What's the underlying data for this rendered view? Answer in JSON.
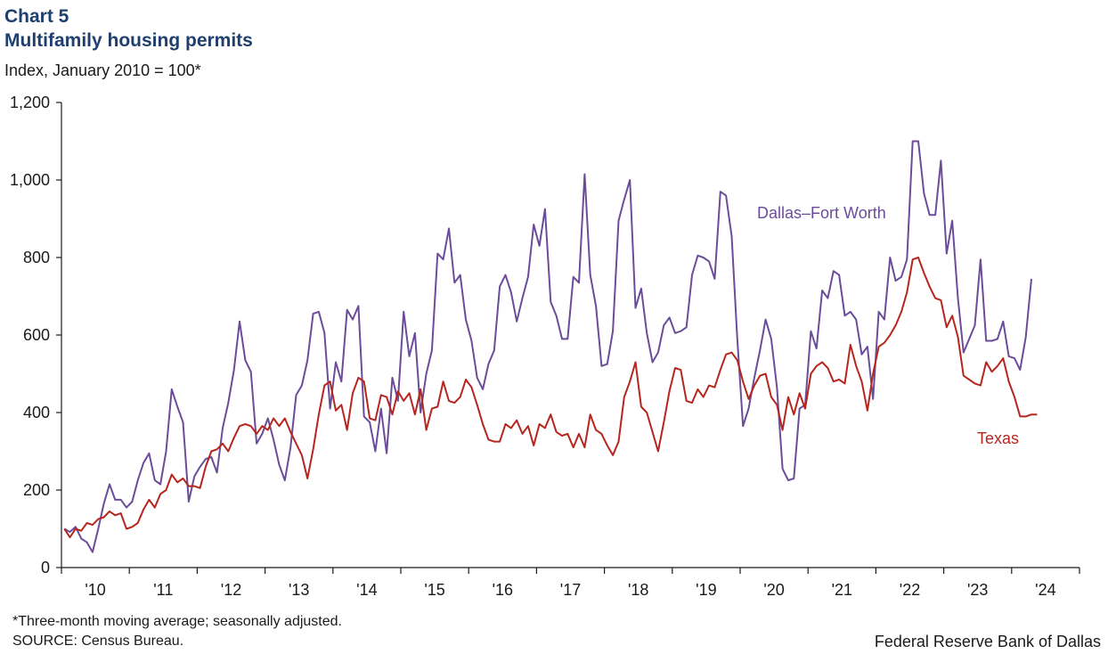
{
  "header": {
    "chart_number": "Chart 5",
    "title": "Multifamily housing permits",
    "subtitle": "Index, January 2010 = 100*"
  },
  "footer": {
    "note": "*Three-month moving average; seasonally adjusted.",
    "source": "SOURCE: Census Bureau.",
    "bank": "Federal Reserve Bank of Dallas"
  },
  "chart_data": {
    "type": "line",
    "title": "Multifamily housing permits",
    "ylabel": "Index, January 2010 = 100*",
    "xlabel": "",
    "ylim": [
      0,
      1200
    ],
    "yticks": [
      0,
      200,
      400,
      600,
      800,
      1000,
      1200
    ],
    "ytick_labels": [
      "0",
      "200",
      "400",
      "600",
      "800",
      "1,000",
      "1,200"
    ],
    "xtick_labels": [
      "'10",
      "'11",
      "'12",
      "'13",
      "'14",
      "'15",
      "'16",
      "'17",
      "'18",
      "'19",
      "'20",
      "'21",
      "'22",
      "'23",
      "'24"
    ],
    "x_start": "2010-01",
    "frequency": "monthly",
    "grid": false,
    "series": [
      {
        "name": "Dallas–Fort Worth",
        "color": "#6b4c9a",
        "values": [
          100,
          92,
          105,
          75,
          65,
          40,
          100,
          165,
          215,
          175,
          175,
          155,
          170,
          225,
          270,
          295,
          225,
          215,
          300,
          460,
          415,
          375,
          170,
          235,
          260,
          280,
          285,
          245,
          360,
          425,
          510,
          635,
          535,
          505,
          320,
          345,
          385,
          330,
          265,
          225,
          310,
          445,
          470,
          535,
          655,
          660,
          605,
          410,
          530,
          480,
          665,
          640,
          675,
          390,
          375,
          300,
          410,
          295,
          490,
          430,
          660,
          545,
          605,
          400,
          500,
          560,
          810,
          795,
          875,
          735,
          755,
          640,
          585,
          490,
          460,
          525,
          560,
          725,
          755,
          710,
          635,
          695,
          750,
          885,
          830,
          925,
          685,
          650,
          590,
          590,
          750,
          735,
          1015,
          755,
          675,
          520,
          525,
          610,
          895,
          950,
          1000,
          670,
          720,
          605,
          530,
          555,
          625,
          645,
          605,
          610,
          620,
          755,
          805,
          800,
          790,
          745,
          970,
          960,
          855,
          590,
          365,
          410,
          490,
          560,
          640,
          590,
          465,
          255,
          225,
          230,
          410,
          420,
          610,
          565,
          715,
          695,
          765,
          755,
          650,
          660,
          640,
          550,
          570,
          435,
          660,
          640,
          800,
          740,
          750,
          795,
          1100,
          1100,
          965,
          910,
          910,
          1050,
          810,
          895,
          695,
          555,
          590,
          625,
          795,
          585,
          585,
          590,
          635,
          545,
          540,
          510,
          595,
          745
        ]
      },
      {
        "name": "Texas",
        "color": "#b5261e",
        "values": [
          100,
          78,
          100,
          95,
          115,
          110,
          125,
          130,
          145,
          135,
          140,
          100,
          105,
          115,
          150,
          175,
          155,
          190,
          200,
          240,
          220,
          230,
          210,
          210,
          205,
          260,
          300,
          305,
          320,
          300,
          335,
          365,
          370,
          365,
          345,
          365,
          355,
          385,
          365,
          385,
          350,
          320,
          290,
          230,
          305,
          395,
          470,
          480,
          405,
          420,
          355,
          450,
          490,
          480,
          385,
          380,
          445,
          440,
          395,
          455,
          430,
          450,
          395,
          460,
          355,
          410,
          415,
          480,
          430,
          425,
          440,
          485,
          465,
          420,
          370,
          330,
          325,
          325,
          370,
          360,
          380,
          345,
          365,
          315,
          370,
          360,
          395,
          350,
          340,
          345,
          310,
          345,
          310,
          395,
          355,
          345,
          315,
          290,
          325,
          440,
          480,
          530,
          415,
          400,
          350,
          300,
          375,
          455,
          515,
          510,
          430,
          425,
          460,
          440,
          470,
          465,
          510,
          550,
          555,
          535,
          480,
          435,
          470,
          495,
          500,
          440,
          420,
          355,
          440,
          395,
          450,
          410,
          500,
          520,
          530,
          515,
          480,
          485,
          475,
          575,
          520,
          480,
          405,
          500,
          570,
          580,
          600,
          625,
          660,
          710,
          795,
          800,
          760,
          725,
          695,
          690,
          620,
          650,
          595,
          495,
          485,
          475,
          470,
          530,
          505,
          520,
          540,
          480,
          440,
          390,
          390,
          395,
          395
        ]
      }
    ]
  }
}
